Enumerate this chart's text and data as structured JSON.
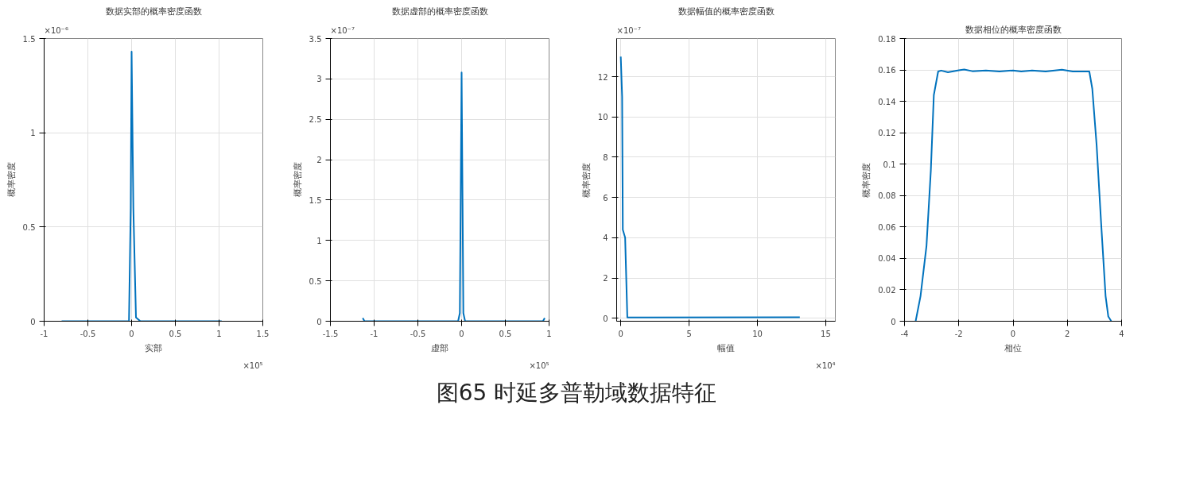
{
  "chart_data": [
    {
      "type": "line",
      "title": "数据实部的概率密度函数",
      "xlabel": "实部",
      "ylabel": "概率密度",
      "x": [
        -0.8,
        -0.03,
        -0.01,
        0,
        0.02,
        0.05,
        0.1,
        1.03
      ],
      "series": [
        {
          "color": "#0072bd",
          "values": [
            0,
            0,
            0.6,
            1.43,
            0.6,
            0.02,
            0,
            0
          ]
        }
      ],
      "xlim": [
        -1,
        1.5
      ],
      "xticks": [
        -1,
        -0.5,
        0,
        0.5,
        1,
        1.5
      ],
      "ylim": [
        0,
        1.5
      ],
      "yticks": [
        0,
        0.5,
        1,
        1.5
      ],
      "grid": true,
      "annotations": [
        "×10⁻⁶",
        "×10⁵",
        "图65  时延多普勒域数据特征"
      ]
    },
    {
      "type": "line",
      "title": "数据虚部的概率密度函数",
      "xlabel": "虚部",
      "ylabel": "概率密度",
      "x": [
        -1.13,
        -1.11,
        -0.04,
        -0.02,
        0,
        0.02,
        0.04,
        0.93,
        0.95
      ],
      "series": [
        {
          "color": "#0072bd",
          "values": [
            0.04,
            0,
            0,
            0.1,
            3.08,
            0.1,
            0,
            0,
            0.04
          ]
        }
      ],
      "xlim": [
        -1.5,
        1
      ],
      "xticks": [
        -1.5,
        -1,
        -0.5,
        0,
        0.5,
        1
      ],
      "ylim": [
        0,
        3.5
      ],
      "yticks": [
        0,
        0.5,
        1,
        1.5,
        2,
        2.5,
        3,
        3.5
      ],
      "grid": true,
      "annotations": [
        "×10⁻⁷",
        "×10⁵"
      ]
    },
    {
      "type": "line",
      "title": "数据幅值的概率密度函数",
      "xlabel": "幅值",
      "ylabel": "概率密度",
      "x": [
        0,
        0.1,
        0.15,
        0.32,
        0.48,
        2,
        13.1
      ],
      "series": [
        {
          "color": "#0072bd",
          "values": [
            13,
            11,
            4.4,
            4,
            0.04,
            0.04,
            0.05
          ]
        }
      ],
      "xlim": [
        -0.3,
        15.7
      ],
      "xticks": [
        0,
        5,
        10,
        15
      ],
      "ylim": [
        -0.15,
        13.9
      ],
      "yticks": [
        0,
        2,
        4,
        6,
        8,
        10,
        12
      ],
      "grid": true,
      "annotations": [
        "×10⁻⁷",
        "×10⁴"
      ]
    },
    {
      "type": "line",
      "title": "数据相位的概率密度函数",
      "xlabel": "相位",
      "ylabel": "概率密度",
      "x": [
        -3.59,
        -3.41,
        -3.19,
        -3.03,
        -2.92,
        -2.76,
        -2.65,
        -2.4,
        -2,
        -1.8,
        -1.5,
        -1,
        -0.5,
        0,
        0.3,
        0.7,
        1.2,
        1.8,
        2.2,
        2.81,
        2.92,
        3.08,
        3.24,
        3.41,
        3.51,
        3.62
      ],
      "series": [
        {
          "color": "#0072bd",
          "values": [
            0,
            0.016,
            0.048,
            0.096,
            0.144,
            0.159,
            0.1596,
            0.1585,
            0.1598,
            0.1603,
            0.1592,
            0.1597,
            0.159,
            0.1597,
            0.159,
            0.1596,
            0.159,
            0.1602,
            0.159,
            0.159,
            0.148,
            0.112,
            0.064,
            0.016,
            0.003,
            0
          ]
        }
      ],
      "xlim": [
        -4,
        4
      ],
      "xticks": [
        -4,
        -2,
        0,
        2,
        4
      ],
      "ylim": [
        0,
        0.18
      ],
      "yticks": [
        0,
        0.02,
        0.04,
        0.06,
        0.08,
        0.1,
        0.12,
        0.14,
        0.16,
        0.18
      ],
      "grid": true
    }
  ]
}
